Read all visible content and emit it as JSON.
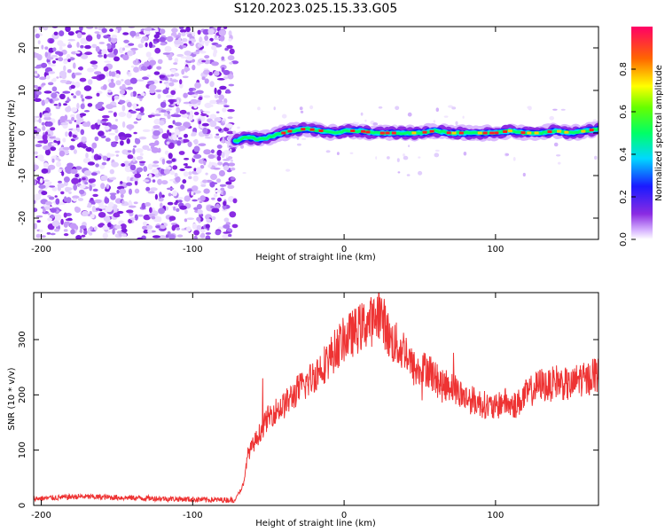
{
  "title": "S120.2023.025.15.33.G05",
  "colors": {
    "snr_line": "#ee3333",
    "frame": "#000000"
  },
  "chart_data": [
    {
      "type": "heatmap",
      "xlabel": "Height of straight line (km)",
      "ylabel": "Frequency (Hz)",
      "xlim": [
        -205,
        168
      ],
      "ylim": [
        -25,
        25
      ],
      "xticks": [
        -200,
        -100,
        0,
        100
      ],
      "yticks": [
        -20,
        -10,
        0,
        10,
        20
      ],
      "grid": false,
      "colorbar": {
        "label": "Normalized spectral amplitude",
        "range": [
          0.0,
          1.0
        ],
        "ticks": [
          "0.0",
          "0.2",
          "0.4",
          "0.6",
          "0.8"
        ],
        "colormap": "rainbow"
      },
      "noise_region_x": [
        -205,
        -72
      ],
      "ridge": {
        "x": [
          -72,
          -65,
          -55,
          -45,
          -35,
          -25,
          -15,
          -5,
          0,
          10,
          20,
          30,
          40,
          50,
          60,
          70,
          80,
          90,
          100,
          110,
          120,
          130,
          140,
          150,
          160,
          168
        ],
        "freq": [
          -2,
          -1,
          -1.5,
          -0.5,
          0.5,
          1,
          0.5,
          0,
          0.5,
          0.5,
          0,
          0,
          0,
          0,
          0.5,
          0,
          0,
          0,
          0,
          0.5,
          0,
          0,
          0.5,
          0,
          0.5,
          1
        ]
      }
    },
    {
      "type": "line",
      "xlabel": "Height of straight line (km)",
      "ylabel": "SNR (10 * v/v)",
      "xlim": [
        -205,
        168
      ],
      "ylim": [
        0,
        385
      ],
      "xticks": [
        -200,
        -100,
        0,
        100
      ],
      "yticks": [
        0,
        100,
        200,
        300
      ],
      "grid": false,
      "series": [
        {
          "x": [
            -205,
            -190,
            -175,
            -160,
            -145,
            -130,
            -115,
            -100,
            -85,
            -72,
            -66,
            -64,
            -62,
            -58,
            -54,
            -50,
            -46,
            -40,
            -35,
            -30,
            -25,
            -20,
            -15,
            -10,
            -5,
            0,
            5,
            10,
            15,
            20,
            23,
            25,
            28,
            30,
            35,
            38,
            40,
            45,
            50,
            55,
            60,
            65,
            70,
            75,
            80,
            85,
            90,
            95,
            100,
            105,
            110,
            115,
            120,
            125,
            130,
            135,
            140,
            145,
            150,
            155,
            160,
            165,
            168
          ],
          "y": [
            12,
            14,
            16,
            15,
            14,
            13,
            12,
            11,
            10,
            10,
            40,
            90,
            100,
            120,
            140,
            160,
            170,
            180,
            195,
            210,
            220,
            235,
            250,
            265,
            285,
            300,
            310,
            320,
            330,
            335,
            350,
            340,
            320,
            300,
            290,
            280,
            285,
            250,
            240,
            250,
            230,
            215,
            220,
            205,
            195,
            190,
            185,
            180,
            175,
            190,
            180,
            185,
            200,
            210,
            220,
            215,
            225,
            220,
            215,
            230,
            225,
            240,
            235
          ]
        }
      ]
    }
  ]
}
